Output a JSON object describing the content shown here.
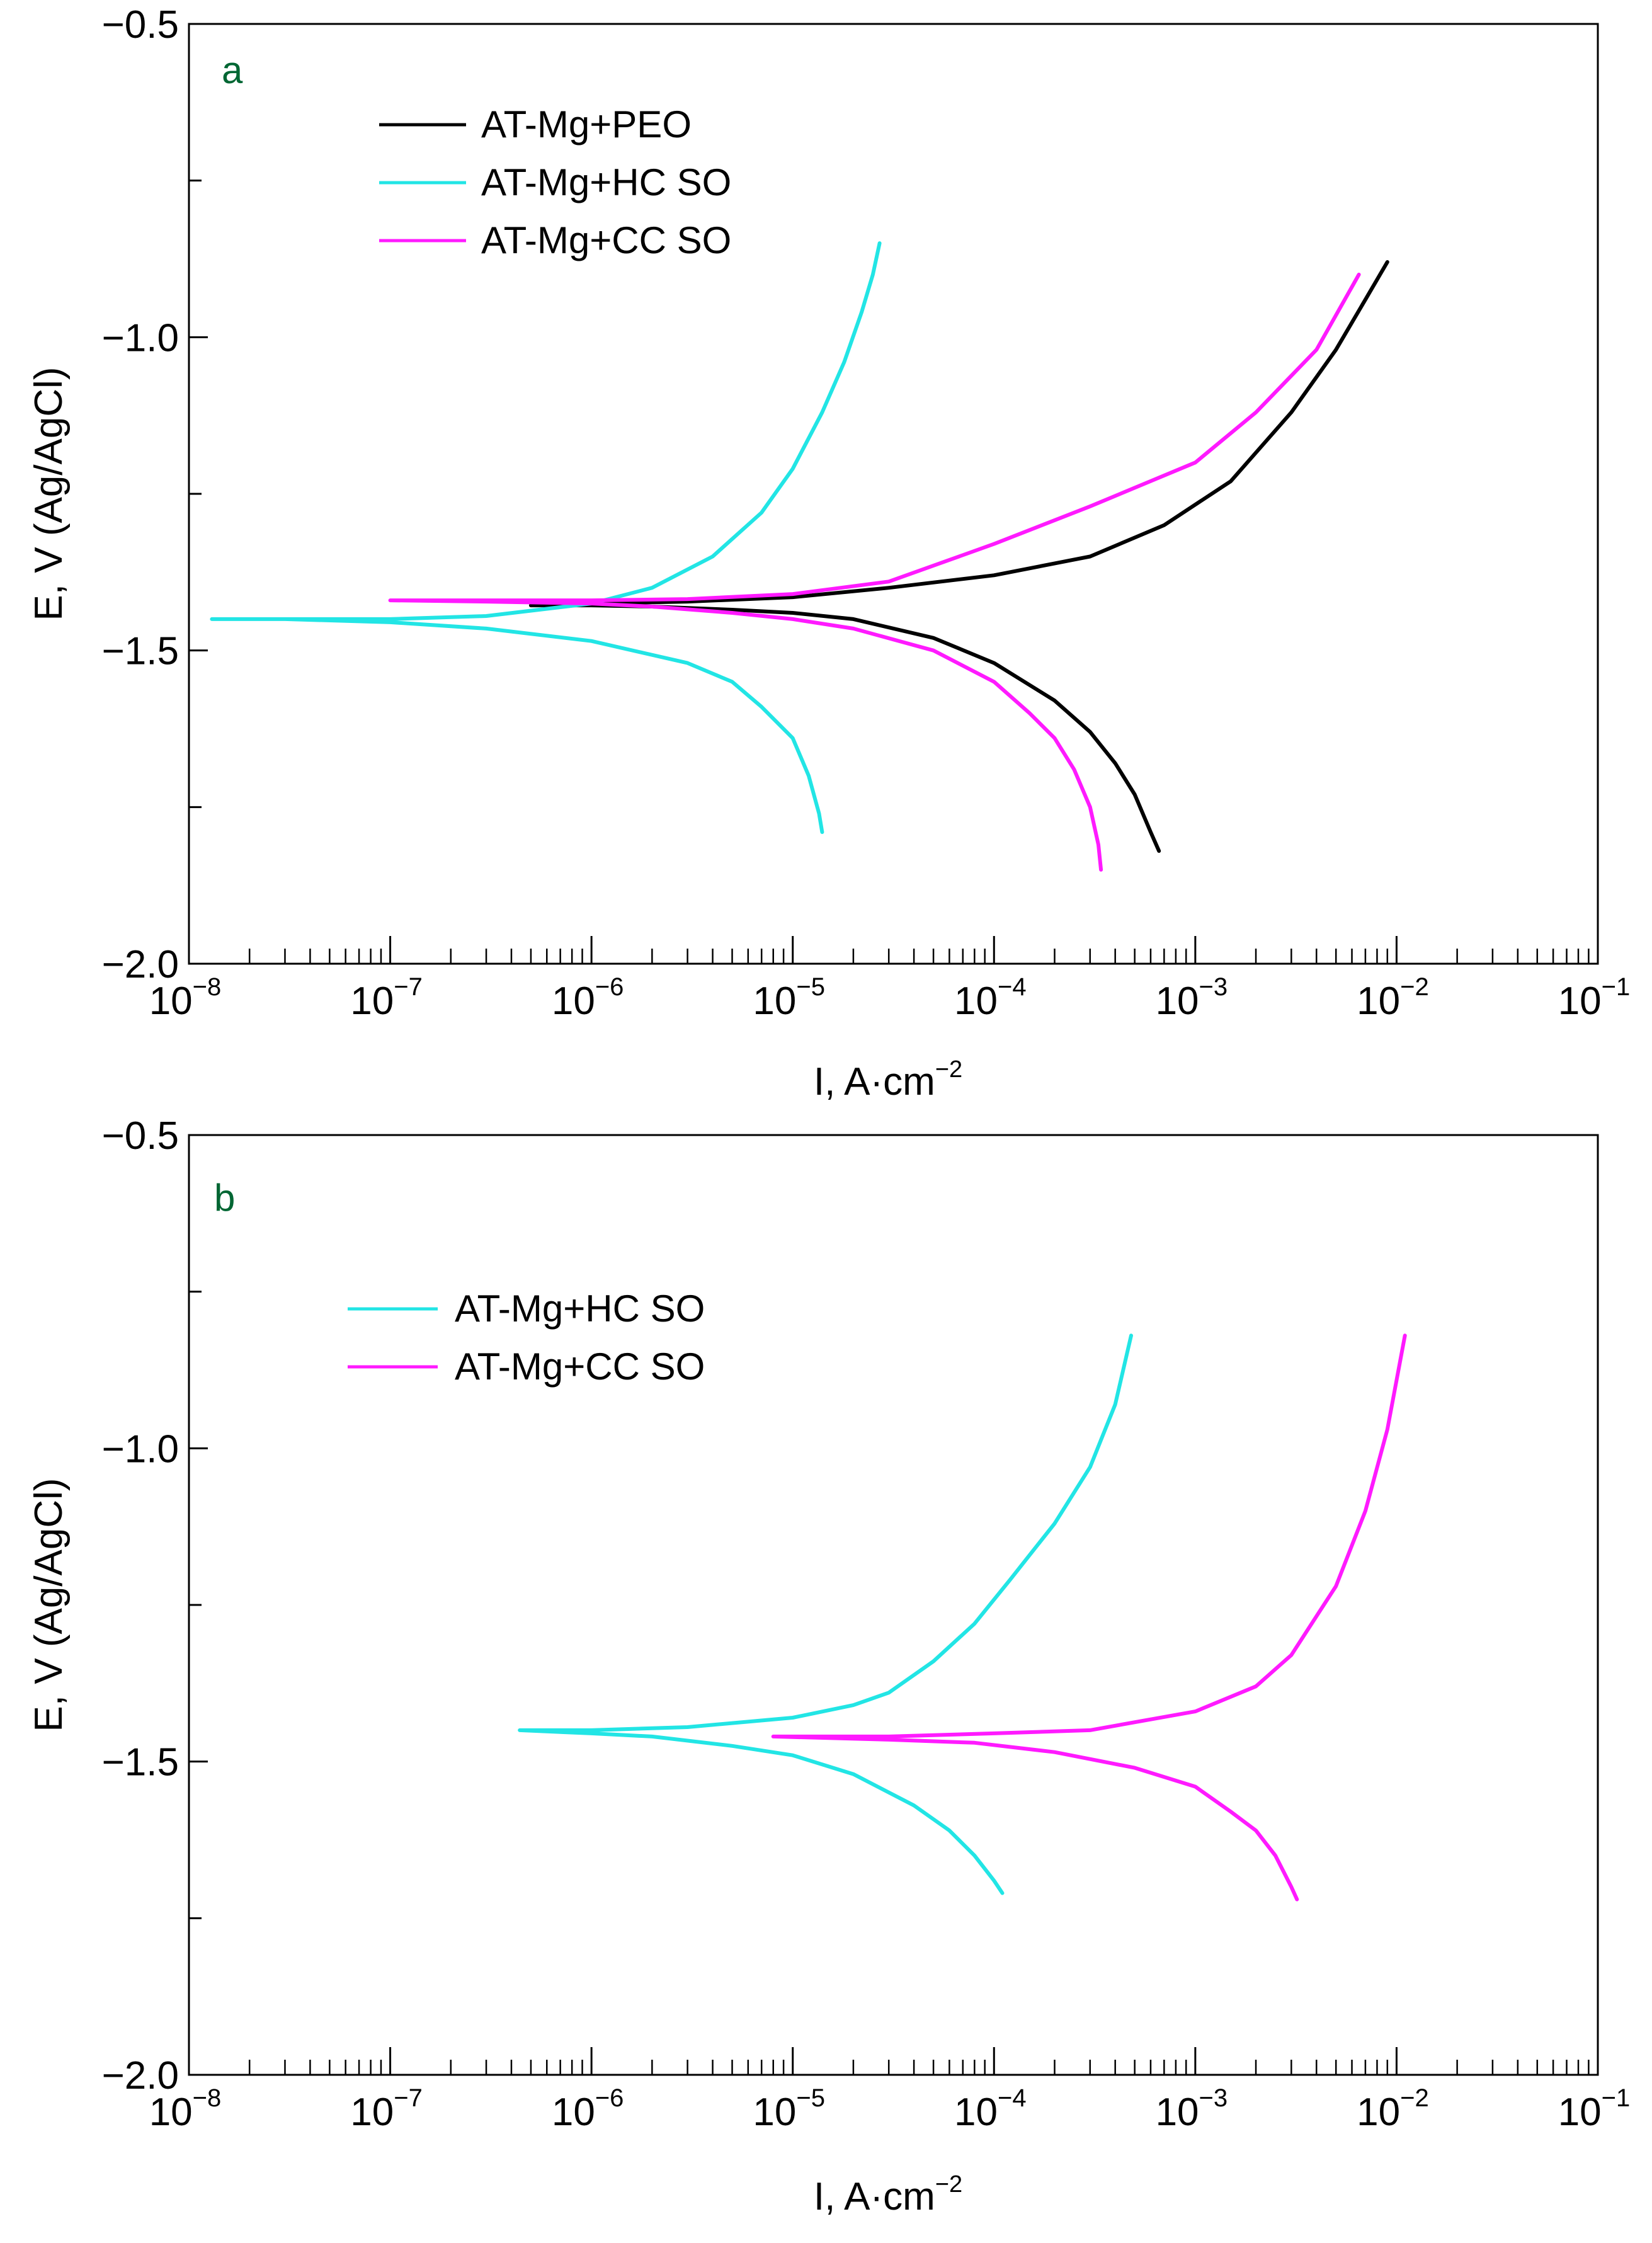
{
  "chart_data": [
    {
      "type": "line",
      "panel_label": "a",
      "xscale": "log",
      "xlim": [
        1e-08,
        0.1
      ],
      "ylim": [
        -2.0,
        -0.5
      ],
      "xlabel": "I, A·cm",
      "xlabel_sup": "−2",
      "ylabel": "E, V (Ag/AgCl)",
      "x_tick_labels": [
        {
          "base": "10",
          "exp": "−8"
        },
        {
          "base": "10",
          "exp": "−7"
        },
        {
          "base": "10",
          "exp": "−6"
        },
        {
          "base": "10",
          "exp": "−5"
        },
        {
          "base": "10",
          "exp": "−4"
        },
        {
          "base": "10",
          "exp": "−3"
        },
        {
          "base": "10",
          "exp": "−2"
        },
        {
          "base": "10",
          "exp": "−1"
        }
      ],
      "y_ticks": [
        -2.0,
        -1.5,
        -1.0,
        -0.5
      ],
      "y_tick_labels": [
        "−2.0",
        "−1.5",
        "−1.0",
        "−0.5"
      ],
      "legend_position": "top-left",
      "series": [
        {
          "name": "AT-Mg+PEO",
          "color": "#000000",
          "x": [
            0.00066,
            0.0006,
            0.0005,
            0.0004,
            0.0003,
            0.0002,
            0.0001,
            5e-05,
            2e-05,
            1e-05,
            5e-06,
            2e-06,
            1e-06,
            5e-07,
            1e-06,
            3e-06,
            1e-05,
            3e-05,
            0.0001,
            0.0003,
            0.0007,
            0.0015,
            0.003,
            0.005,
            0.007,
            0.009
          ],
          "y": [
            -1.82,
            -1.79,
            -1.73,
            -1.68,
            -1.63,
            -1.58,
            -1.52,
            -1.48,
            -1.45,
            -1.44,
            -1.435,
            -1.43,
            -1.428,
            -1.428,
            -1.425,
            -1.422,
            -1.415,
            -1.4,
            -1.38,
            -1.35,
            -1.3,
            -1.23,
            -1.12,
            -1.02,
            -0.94,
            -0.88
          ]
        },
        {
          "name": "AT-Mg+HC SO",
          "color": "#22e5e5",
          "x": [
            1.4e-05,
            1.35e-05,
            1.2e-05,
            1e-05,
            7e-06,
            5e-06,
            3e-06,
            1e-06,
            3e-07,
            1e-07,
            3e-08,
            1.3e-08,
            3e-08,
            1e-07,
            3e-07,
            1e-06,
            2e-06,
            4e-06,
            7e-06,
            1e-05,
            1.4e-05,
            1.8e-05,
            2.2e-05,
            2.5e-05,
            2.7e-05
          ],
          "y": [
            -1.79,
            -1.76,
            -1.7,
            -1.64,
            -1.59,
            -1.55,
            -1.52,
            -1.485,
            -1.465,
            -1.455,
            -1.45,
            -1.45,
            -1.45,
            -1.45,
            -1.445,
            -1.425,
            -1.4,
            -1.35,
            -1.28,
            -1.21,
            -1.12,
            -1.04,
            -0.96,
            -0.9,
            -0.85
          ]
        },
        {
          "name": "AT-Mg+CC SO",
          "color": "#ff1aff",
          "x": [
            0.00034,
            0.00033,
            0.0003,
            0.00025,
            0.0002,
            0.00015,
            0.0001,
            5e-05,
            2e-05,
            1e-05,
            5e-06,
            2e-06,
            1e-06,
            3e-07,
            1e-07,
            3e-07,
            1e-06,
            3e-06,
            1e-05,
            3e-05,
            0.0001,
            0.0003,
            0.001,
            0.002,
            0.004,
            0.0065
          ],
          "y": [
            -1.85,
            -1.81,
            -1.75,
            -1.69,
            -1.64,
            -1.6,
            -1.55,
            -1.5,
            -1.465,
            -1.45,
            -1.44,
            -1.43,
            -1.425,
            -1.422,
            -1.42,
            -1.42,
            -1.42,
            -1.418,
            -1.41,
            -1.39,
            -1.33,
            -1.27,
            -1.2,
            -1.12,
            -1.02,
            -0.9
          ]
        }
      ]
    },
    {
      "type": "line",
      "panel_label": "b",
      "xscale": "log",
      "xlim": [
        1e-08,
        0.1
      ],
      "ylim": [
        -2.0,
        -0.5
      ],
      "xlabel": "I, A·cm",
      "xlabel_sup": "−2",
      "ylabel": "E, V (Ag/AgCl)",
      "x_tick_labels": [
        {
          "base": "10",
          "exp": "−8"
        },
        {
          "base": "10",
          "exp": "−7"
        },
        {
          "base": "10",
          "exp": "−6"
        },
        {
          "base": "10",
          "exp": "−5"
        },
        {
          "base": "10",
          "exp": "−4"
        },
        {
          "base": "10",
          "exp": "−3"
        },
        {
          "base": "10",
          "exp": "−2"
        },
        {
          "base": "10",
          "exp": "−1"
        }
      ],
      "y_ticks": [
        -2.0,
        -1.5,
        -1.0,
        -0.5
      ],
      "y_tick_labels": [
        "−2.0",
        "−1.5",
        "−1.0",
        "−0.5"
      ],
      "legend_position": "top-left",
      "series": [
        {
          "name": "AT-Mg+HC SO",
          "color": "#22e5e5",
          "x": [
            0.00011,
            0.0001,
            8e-05,
            6e-05,
            4e-05,
            2e-05,
            1e-05,
            5e-06,
            2e-06,
            1e-06,
            4.4e-07,
            1e-06,
            3e-06,
            1e-05,
            2e-05,
            3e-05,
            5e-05,
            8e-05,
            0.00012,
            0.0002,
            0.0003,
            0.0004,
            0.00048
          ],
          "y": [
            -1.71,
            -1.69,
            -1.65,
            -1.61,
            -1.57,
            -1.52,
            -1.49,
            -1.475,
            -1.46,
            -1.455,
            -1.45,
            -1.45,
            -1.445,
            -1.43,
            -1.41,
            -1.39,
            -1.34,
            -1.28,
            -1.21,
            -1.12,
            -1.03,
            -0.93,
            -0.82
          ]
        },
        {
          "name": "AT-Mg+CC SO",
          "color": "#ff1aff",
          "x": [
            0.0032,
            0.003,
            0.0025,
            0.002,
            0.0015,
            0.001,
            0.0005,
            0.0002,
            8e-05,
            3e-05,
            8e-06,
            3e-05,
            0.0001,
            0.0003,
            0.001,
            0.002,
            0.003,
            0.005,
            0.007,
            0.009,
            0.011
          ],
          "y": [
            -1.72,
            -1.7,
            -1.65,
            -1.61,
            -1.58,
            -1.54,
            -1.51,
            -1.485,
            -1.47,
            -1.465,
            -1.46,
            -1.46,
            -1.455,
            -1.45,
            -1.42,
            -1.38,
            -1.33,
            -1.22,
            -1.1,
            -0.97,
            -0.82
          ]
        }
      ]
    }
  ]
}
